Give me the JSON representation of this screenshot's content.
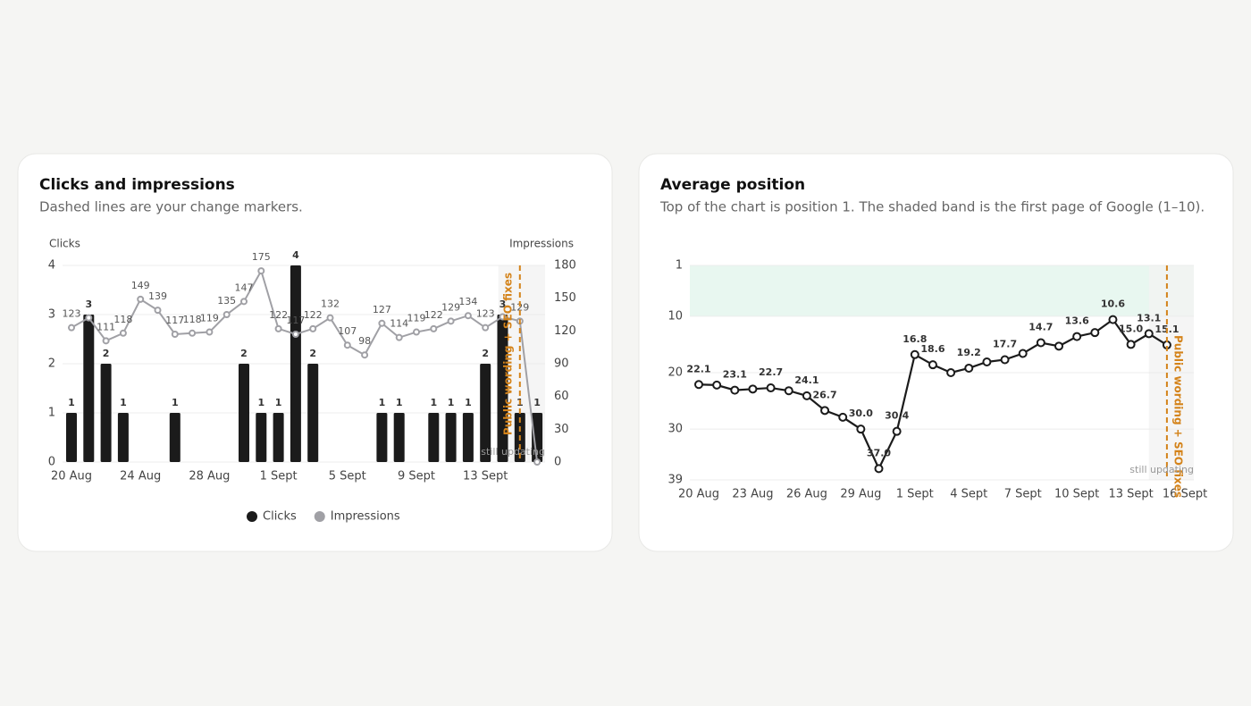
{
  "chart_data": [
    {
      "type": "bar_line",
      "title": "Clicks and impressions",
      "subtitle": "Dashed lines are your change markers.",
      "categories": [
        "20 Aug",
        null,
        null,
        null,
        "24 Aug",
        null,
        null,
        null,
        "28 Aug",
        null,
        null,
        null,
        "1 Sept",
        null,
        null,
        null,
        "5 Sept",
        null,
        null,
        null,
        "9 Sept",
        null,
        null,
        null,
        "13 Sept",
        null,
        null,
        null
      ],
      "series": [
        {
          "name": "Clicks",
          "type": "bar",
          "color": "#1b1b1b",
          "values": [
            1,
            3,
            2,
            1,
            0,
            0,
            1,
            0,
            0,
            0,
            2,
            1,
            1,
            4,
            2,
            0,
            0,
            0,
            1,
            1,
            0,
            1,
            1,
            1,
            2,
            3,
            1,
            1
          ]
        },
        {
          "name": "Impressions",
          "type": "line",
          "axis": "y2",
          "color": "#a0a0a5",
          "values": [
            123,
            132,
            111,
            118,
            149,
            139,
            117,
            118,
            119,
            135,
            147,
            175,
            122,
            117,
            122,
            132,
            107,
            98,
            127,
            114,
            119,
            122,
            129,
            134,
            123,
            133,
            129,
            0
          ],
          "value_labels": [
            "123",
            null,
            "111",
            "118",
            "149",
            "139",
            "117",
            "118",
            "119",
            "135",
            "147",
            "175",
            "122",
            "117",
            "122",
            "132",
            "107",
            "98",
            "127",
            "114",
            "119",
            "122",
            "129",
            "134",
            "123",
            null,
            "129",
            null
          ]
        }
      ],
      "y_label": "Clicks",
      "y2_label": "Impressions",
      "ylim": [
        0,
        4
      ],
      "yticks": [
        0,
        1,
        2,
        3,
        4
      ],
      "y2lim": [
        0,
        180
      ],
      "y2ticks": [
        0,
        30,
        60,
        90,
        120,
        150,
        180
      ],
      "grid": true,
      "legend": "bottom",
      "marker": {
        "label": "Public wording + SEO fixes",
        "at": 26,
        "color": "#d4831a"
      },
      "shade": {
        "label": "still updating",
        "from": 25
      }
    },
    {
      "type": "line",
      "title": "Average position",
      "subtitle": "Top of the chart is position 1. The shaded band is the first page of Google (1–10).",
      "categories": [
        "20 Aug",
        null,
        null,
        "23 Aug",
        null,
        null,
        "26 Aug",
        null,
        null,
        "29 Aug",
        null,
        null,
        "1 Sept",
        null,
        null,
        "4 Sept",
        null,
        null,
        "7 Sept",
        null,
        null,
        "10 Sept",
        null,
        null,
        "13 Sept",
        null,
        null,
        "16 Sept"
      ],
      "series": [
        {
          "name": "Average position",
          "color": "#1b1b1b",
          "values": [
            22.1,
            22.2,
            23.1,
            22.9,
            22.7,
            23.2,
            24.1,
            26.7,
            27.9,
            30.0,
            37.0,
            30.4,
            16.8,
            18.6,
            20.0,
            19.2,
            18.1,
            17.7,
            16.6,
            14.7,
            15.3,
            13.6,
            12.9,
            10.6,
            15.0,
            13.1,
            15.1,
            null
          ],
          "value_labels": [
            "22.1",
            null,
            "23.1",
            null,
            "22.7",
            null,
            "24.1",
            "26.7",
            null,
            "30.0",
            "37.0",
            "30.4",
            "16.8",
            "18.6",
            null,
            "19.2",
            null,
            "17.7",
            null,
            "14.7",
            null,
            "13.6",
            null,
            "10.6",
            "15.0",
            "13.1",
            "15.1",
            null
          ]
        }
      ],
      "ylim": [
        1,
        39
      ],
      "yticks": [
        1,
        10,
        20,
        30,
        39
      ],
      "y_inverted": true,
      "band": [
        1,
        10
      ],
      "band_color": "#e8f7f0",
      "grid": true,
      "marker": {
        "label": "Public wording + SEO fixes",
        "at": 26,
        "color": "#d4831a"
      },
      "shade": {
        "label": "still updating",
        "from": 25
      }
    }
  ]
}
